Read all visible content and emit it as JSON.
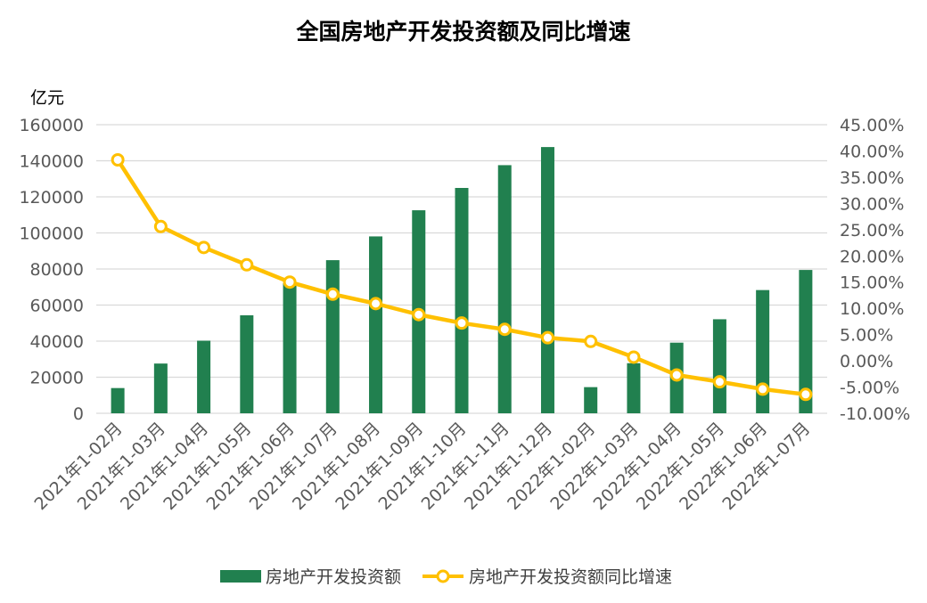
{
  "chart_data": {
    "type": "bar+line",
    "title": "全国房地产开发投资额及同比增速",
    "y_left_unit": "亿元",
    "categories": [
      "2021年1-02月",
      "2021年1-03月",
      "2021年1-04月",
      "2021年1-05月",
      "2021年1-06月",
      "2021年1-07月",
      "2021年1-08月",
      "2021年1-09月",
      "2021年1-10月",
      "2021年1-11月",
      "2021年1-12月",
      "2022年1-02月",
      "2022年1-03月",
      "2022年1-04月",
      "2022年1-05月",
      "2022年1-06月",
      "2022年1-07月"
    ],
    "series": [
      {
        "name": "房地产开发投资额",
        "type": "bar",
        "axis": "left",
        "color": "#21804f",
        "values": [
          13986,
          27576,
          40240,
          54318,
          72179,
          84895,
          98060,
          112559,
          124934,
          137567,
          147602,
          14499,
          27765,
          39154,
          52134,
          68314,
          79462
        ]
      },
      {
        "name": "房地产开发投资额同比增速",
        "type": "line",
        "axis": "right",
        "color": "#ffc000",
        "values": [
          38.3,
          25.6,
          21.6,
          18.3,
          15.0,
          12.7,
          10.9,
          8.8,
          7.2,
          6.0,
          4.4,
          3.7,
          0.7,
          -2.7,
          -4.0,
          -5.4,
          -6.4
        ]
      }
    ],
    "y_left": {
      "min": 0,
      "max": 160000,
      "ticks": [
        "0",
        "20000",
        "40000",
        "60000",
        "80000",
        "100000",
        "120000",
        "140000",
        "160000"
      ]
    },
    "y_right": {
      "min": -10,
      "max": 45,
      "ticks": [
        "-10.00%",
        "-5.00%",
        "0.00%",
        "5.00%",
        "10.00%",
        "15.00%",
        "20.00%",
        "25.00%",
        "30.00%",
        "35.00%",
        "40.00%",
        "45.00%"
      ]
    },
    "gridlines": true,
    "legend": {
      "position": "bottom",
      "items": [
        "房地产开发投资额",
        "房地产开发投资额同比增速"
      ]
    },
    "colors": {
      "bar": "#21804f",
      "line": "#ffc000",
      "grid": "#d9d9d9",
      "axis_text": "#595959"
    }
  }
}
